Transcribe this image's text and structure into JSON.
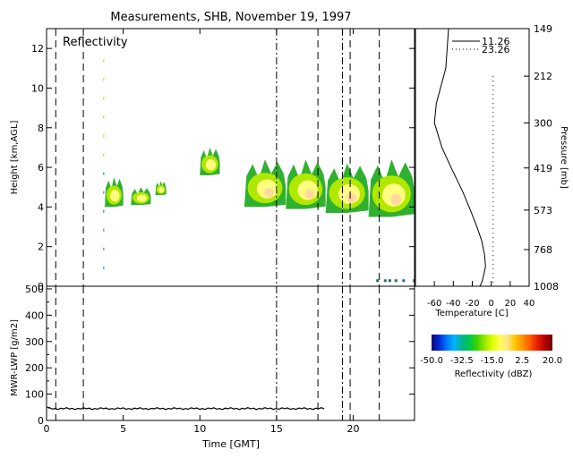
{
  "title": "Measurements, SHB, November 19, 1997",
  "chart_data": [
    {
      "type": "heatmap",
      "panel_label": "Reflectivity",
      "ylabel": "Height [km,AGL]",
      "xlim": [
        0,
        24
      ],
      "ylim": [
        0,
        13
      ],
      "y_ticks": [
        0,
        2,
        4,
        6,
        8,
        10,
        12
      ],
      "x_ticks": [
        0,
        5,
        10,
        15,
        20
      ],
      "dashed_markers": [
        0.6,
        2.4,
        17.7,
        19.8,
        21.7
      ],
      "dashdot_markers": [
        15.0,
        19.3
      ],
      "cloud_layers": [
        {
          "x": [
            3.8,
            5.0
          ],
          "y": [
            4.0,
            5.5
          ]
        },
        {
          "x": [
            5.5,
            6.8
          ],
          "y": [
            4.1,
            5.0
          ]
        },
        {
          "x": [
            7.1,
            7.8
          ],
          "y": [
            4.6,
            5.3
          ]
        },
        {
          "x": [
            10.0,
            11.3
          ],
          "y": [
            5.6,
            7.0
          ]
        },
        {
          "x": [
            12.9,
            15.6
          ],
          "y": [
            4.0,
            6.4
          ]
        },
        {
          "x": [
            15.6,
            18.2
          ],
          "y": [
            3.9,
            6.4
          ]
        },
        {
          "x": [
            18.2,
            21.0
          ],
          "y": [
            3.7,
            6.2
          ]
        },
        {
          "x": [
            21.0,
            24.0
          ],
          "y": [
            3.5,
            6.4
          ]
        }
      ]
    },
    {
      "type": "line",
      "name": "Temperature",
      "xlabel": "Temperature [C]",
      "ylabel": "Pressure [mb]",
      "xlim": [
        -80,
        40
      ],
      "x_ticks": [
        -60,
        -40,
        -20,
        0,
        20,
        40
      ],
      "pressure_ticks": [
        149,
        212,
        300,
        419,
        573,
        768,
        1008
      ],
      "legend": [
        "11.26",
        "23.26"
      ],
      "series": [
        {
          "name": "11.26",
          "style": "solid",
          "points": [
            [
              -45,
              149
            ],
            [
              -48,
              200
            ],
            [
              -58,
              260
            ],
            [
              -60,
              300
            ],
            [
              -52,
              360
            ],
            [
              -42,
              420
            ],
            [
              -30,
              500
            ],
            [
              -22,
              573
            ],
            [
              -15,
              650
            ],
            [
              -10,
              720
            ],
            [
              -7,
              800
            ],
            [
              -6,
              870
            ],
            [
              -8,
              930
            ],
            [
              -10,
              980
            ],
            [
              -12,
              1008
            ]
          ]
        },
        {
          "name": "23.26",
          "style": "dotted",
          "points": [
            [
              2,
              212
            ],
            [
              2,
              1008
            ]
          ]
        }
      ]
    },
    {
      "type": "line",
      "ylabel": "MWR-LWP [g/m2]",
      "xlabel": "Time [GMT]",
      "xlim": [
        0,
        24
      ],
      "ylim": [
        0,
        510
      ],
      "y_ticks": [
        0,
        100,
        200,
        300,
        400,
        500
      ],
      "y_minor_ticks": [
        50,
        150,
        250,
        350,
        450
      ],
      "x_ticks": [
        0,
        5,
        10,
        15,
        20
      ],
      "x_range": [
        0.1,
        18.1
      ],
      "level": 45
    },
    {
      "type": "colorbar",
      "label": "Reflectivity (dBZ)",
      "ticks": [
        "-50.0",
        "-32.5",
        "-15.0",
        "2.5",
        "20.0"
      ],
      "range": [
        -50,
        20
      ],
      "colors": [
        "#0a0a6e",
        "#0028d2",
        "#0078ff",
        "#00b4ff",
        "#00b48c",
        "#00c850",
        "#3cd200",
        "#96e600",
        "#dcff00",
        "#ffff50",
        "#ffe68c",
        "#ffc800",
        "#ff9600",
        "#ff5a00",
        "#e61e00",
        "#b40000",
        "#6e0000"
      ]
    }
  ]
}
